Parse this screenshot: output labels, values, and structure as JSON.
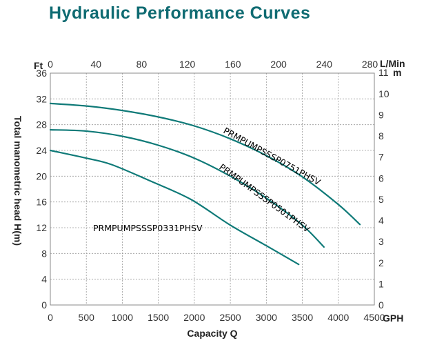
{
  "chart_data": {
    "type": "line",
    "title": "Hydraulic Performance Curves",
    "xlabel": "Capacity Q",
    "ylabel": "Total manometric head H(m)",
    "x_unit": "GPH",
    "y_unit_left_top": "Ft",
    "top_axis_unit": "L/Min",
    "right_axis_unit": "m",
    "xlim": [
      0,
      4500
    ],
    "ylim": [
      0,
      36
    ],
    "grid": true,
    "x_ticks": [
      0,
      500,
      1000,
      1500,
      2000,
      2500,
      3000,
      3500,
      4000,
      4500
    ],
    "y_ticks": [
      0,
      4,
      8,
      12,
      16,
      20,
      24,
      28,
      32,
      36
    ],
    "top_ticks": [
      0,
      40,
      80,
      120,
      160,
      200,
      240,
      280
    ],
    "right_ticks": [
      0,
      1,
      2,
      3,
      4,
      5,
      6,
      7,
      8,
      9,
      10,
      11
    ],
    "series": [
      {
        "name": "PRMPUMPSSSP0751PHSV",
        "x": [
          0,
          500,
          1000,
          1500,
          2000,
          2500,
          3000,
          3500,
          4000,
          4300
        ],
        "y": [
          31.3,
          30.9,
          30.2,
          29.2,
          27.8,
          25.8,
          23.2,
          19.9,
          15.6,
          12.5
        ]
      },
      {
        "name": "PRMPUMPSSSP0501PHSV",
        "x": [
          0,
          500,
          1000,
          1500,
          2000,
          2500,
          3000,
          3500,
          3800
        ],
        "y": [
          27.2,
          27.0,
          26.2,
          24.8,
          22.8,
          20.0,
          16.6,
          12.4,
          9.0
        ]
      },
      {
        "name": "PRMPUMPSSSP0331PHSV",
        "x": [
          0,
          500,
          850,
          1400,
          1950,
          2500,
          3000,
          3450
        ],
        "y": [
          24.0,
          22.8,
          21.8,
          19.2,
          16.4,
          12.4,
          9.2,
          6.3
        ]
      }
    ],
    "line_color": "#0f7a78"
  }
}
